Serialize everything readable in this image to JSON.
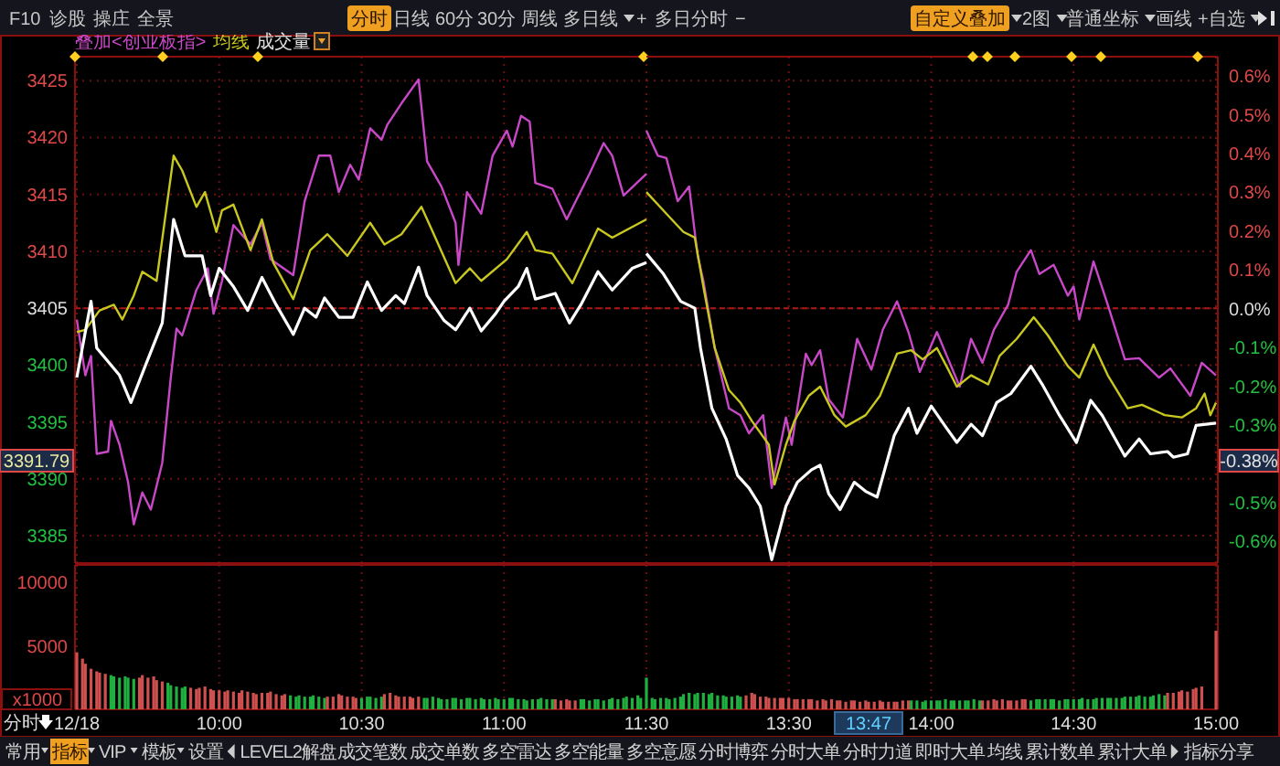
{
  "chart_data": [
    {
      "type": "line",
      "legend": "top left",
      "grid": true,
      "tick_labels": "y",
      "xlim": [
        9.5,
        11.5
      ],
      "xticks": [
        {
          "value": 9.5,
          "label": null
        },
        {
          "value": 10,
          "label": null
        },
        {
          "value": 10.5,
          "label": null
        },
        {
          "value": 11,
          "label": null
        },
        {
          "value": 11.5,
          "label": null
        }
      ],
      "ylim": [
        3382.6,
        3427.1
      ],
      "yticks": [
        3385,
        3390,
        3395,
        3400,
        3405,
        3410,
        3415,
        3420,
        3425
      ],
      "ref_lines": [
        {
          "axis": "y",
          "value": 3405,
          "color": "#b01818"
        }
      ],
      "annotations": [
        "3391.79"
      ],
      "series": [
        {
          "name": "叠加<创业板指>",
          "color": "#c848c8",
          "x": [
            9.5,
            9.53,
            9.55,
            9.57,
            9.61,
            9.62,
            9.65,
            9.68,
            9.7,
            9.73,
            9.76,
            9.8,
            9.83,
            9.85,
            9.87,
            9.89,
            9.92,
            9.96,
            9.98,
            10.01,
            10.05,
            10.11,
            10.15,
            10.18,
            10.26,
            10.3,
            10.35,
            10.39,
            10.42,
            10.46,
            10.49,
            10.53,
            10.57,
            10.59,
            10.64,
            10.7,
            10.73,
            10.78,
            10.83,
            10.84,
            10.87,
            10.92,
            10.96,
            11.01,
            11.03,
            11.06,
            11.09,
            11.11,
            11.17,
            11.22,
            11.3,
            11.35,
            11.38,
            11.42,
            11.5
          ],
          "values": [
            3404.0,
            3399.1,
            3400.8,
            3392.2,
            3392.4,
            3395.1,
            3393.0,
            3389.7,
            3386.0,
            3388.8,
            3387.3,
            3391.4,
            3398.9,
            3403.2,
            3402.6,
            3404.2,
            3406.6,
            3408.5,
            3404.5,
            3407.4,
            3412.3,
            3410.6,
            3412.5,
            3409.3,
            3407.9,
            3414.4,
            3418.4,
            3418.4,
            3415.2,
            3417.6,
            3416.3,
            3420.8,
            3419.8,
            3421.1,
            3423.0,
            3425.1,
            3417.9,
            3415.7,
            3412.5,
            3408.8,
            3415.2,
            3413.3,
            3418.4,
            3420.6,
            3419.2,
            3421.9,
            3421.4,
            3416.0,
            3415.5,
            3412.8,
            3416.8,
            3419.5,
            3418.4,
            3414.9,
            3416.8
          ]
        },
        {
          "name": "均线",
          "color": "#c8c820",
          "x": [
            9.5,
            9.53,
            9.58,
            9.63,
            9.66,
            9.7,
            9.73,
            9.78,
            9.84,
            9.87,
            9.92,
            9.95,
            9.99,
            10.01,
            10.05,
            10.11,
            10.15,
            10.19,
            10.26,
            10.32,
            10.38,
            10.45,
            10.53,
            10.58,
            10.64,
            10.71,
            10.75,
            10.83,
            10.88,
            10.92,
            11.01,
            11.08,
            11.11,
            11.17,
            11.24,
            11.33,
            11.38,
            11.5
          ],
          "values": [
            3402.9,
            3403.1,
            3404.8,
            3405.3,
            3404.0,
            3406.1,
            3408.2,
            3407.4,
            3418.4,
            3417.1,
            3413.9,
            3415.2,
            3411.7,
            3413.6,
            3414.1,
            3410.1,
            3412.8,
            3409.0,
            3405.8,
            3410.1,
            3411.5,
            3409.6,
            3412.5,
            3410.6,
            3411.5,
            3413.9,
            3411.7,
            3407.2,
            3408.5,
            3407.4,
            3409.3,
            3411.7,
            3410.1,
            3409.8,
            3407.2,
            3412.0,
            3411.2,
            3412.8
          ]
        },
        {
          "color": "#ffffff",
          "x": [
            9.5,
            9.55,
            9.57,
            9.65,
            9.69,
            9.74,
            9.8,
            9.84,
            9.88,
            9.94,
            9.97,
            10,
            10.05,
            10.1,
            10.15,
            10.2,
            10.26,
            10.3,
            10.34,
            10.37,
            10.42,
            10.47,
            10.52,
            10.57,
            10.62,
            10.65,
            10.7,
            10.73,
            10.79,
            10.83,
            10.88,
            10.92,
            10.97,
            11,
            11.05,
            11.08,
            11.11,
            11.18,
            11.23,
            11.27,
            11.33,
            11.38,
            11.45,
            11.5
          ],
          "values": [
            3398.9,
            3405.6,
            3401.5,
            3399.1,
            3396.7,
            3399.9,
            3403.7,
            3412.8,
            3409.6,
            3409.6,
            3406.1,
            3408.5,
            3406.9,
            3404.8,
            3407.7,
            3405.3,
            3402.7,
            3405.0,
            3404.2,
            3405.9,
            3404.2,
            3404.2,
            3407.3,
            3404.8,
            3406.1,
            3405.4,
            3408.6,
            3406.1,
            3403.9,
            3403.1,
            3405.0,
            3403.0,
            3404.5,
            3405.6,
            3406.9,
            3408.5,
            3405.8,
            3406.3,
            3403.7,
            3405.3,
            3408.2,
            3406.6,
            3408.5,
            3409.0
          ]
        }
      ]
    },
    {
      "type": "line",
      "grid": true,
      "tick_labels": false,
      "xlim": [
        13,
        15
      ],
      "xticks": [
        {
          "value": 13.5,
          "label": null
        },
        {
          "value": 14,
          "label": null
        },
        {
          "value": 14.5,
          "label": null
        },
        {
          "value": 15,
          "label": null
        }
      ],
      "ylim": [
        3382.6,
        3427.1
      ],
      "yticks": [
        3385,
        3390,
        3395,
        3400,
        3405,
        3410,
        3415,
        3420,
        3425
      ],
      "y2lim": [
        -0.656,
        0.65
      ],
      "y2ticks": [
        {
          "value": -0.6,
          "label": "-0.6%"
        },
        {
          "value": -0.5,
          "label": "-0.5%"
        },
        {
          "value": -0.3,
          "label": "-0.3%"
        },
        {
          "value": -0.2,
          "label": "-0.2%"
        },
        {
          "value": -0.1,
          "label": "-0.1%"
        },
        {
          "value": 0,
          "label": "0.0%"
        },
        {
          "value": 0.1,
          "label": "0.1%"
        },
        {
          "value": 0.2,
          "label": "0.2%"
        },
        {
          "value": 0.3,
          "label": "0.3%"
        },
        {
          "value": 0.4,
          "label": "0.4%"
        },
        {
          "value": 0.5,
          "label": "0.5%"
        },
        {
          "value": 0.6,
          "label": "0.6%"
        }
      ],
      "ref_lines": [
        {
          "axis": "y",
          "value": 3405,
          "color": "#b01818"
        }
      ],
      "annotations": [
        "-0.38%"
      ],
      "series": [
        {
          "color": "#c848c8",
          "x": [
            13,
            13.04,
            13.07,
            13.11,
            13.15,
            13.18,
            13.2,
            13.24,
            13.29,
            13.33,
            13.36,
            13.41,
            13.44,
            13.49,
            13.51,
            13.56,
            13.58,
            13.61,
            13.64,
            13.69,
            13.74,
            13.79,
            13.83,
            13.88,
            13.92,
            13.96,
            14.02,
            14.06,
            14.1,
            14.14,
            14.18,
            14.22,
            14.27,
            14.3,
            14.35,
            14.38,
            14.43,
            14.48,
            14.5,
            14.52,
            14.57,
            14.62,
            14.68,
            14.73,
            14.8,
            14.84,
            14.91,
            14.95,
            15
          ],
          "values": [
            3420.6,
            3418.4,
            3418.2,
            3414.4,
            3415.7,
            3409.6,
            3407.4,
            3401.5,
            3396.2,
            3395.6,
            3394.0,
            3395.6,
            3389.2,
            3395.4,
            3393.0,
            3401.0,
            3400.0,
            3401.3,
            3397.0,
            3395.4,
            3402.3,
            3399.6,
            3403.1,
            3405.6,
            3402.9,
            3399.4,
            3402.9,
            3400.5,
            3398.1,
            3402.3,
            3400.2,
            3403.1,
            3405.3,
            3408.2,
            3410.1,
            3408.0,
            3408.8,
            3406.1,
            3406.9,
            3404.0,
            3409.1,
            3405.3,
            3400.5,
            3400.6,
            3398.9,
            3399.7,
            3397.3,
            3400.2,
            3399.1
          ]
        },
        {
          "color": "#c8c820",
          "x": [
            13,
            13.07,
            13.13,
            13.17,
            13.2,
            13.24,
            13.29,
            13.33,
            13.37,
            13.43,
            13.45,
            13.49,
            13.52,
            13.57,
            13.61,
            13.66,
            13.7,
            13.77,
            13.82,
            13.88,
            13.93,
            13.97,
            14.02,
            14.06,
            14.09,
            14.14,
            14.2,
            14.24,
            14.3,
            14.36,
            14.41,
            14.48,
            14.52,
            14.57,
            14.62,
            14.69,
            14.74,
            14.82,
            14.88,
            14.93,
            14.96,
            14.98,
            15
          ],
          "values": [
            3415.2,
            3413.3,
            3411.7,
            3411.2,
            3406.9,
            3401.5,
            3397.8,
            3396.7,
            3395.1,
            3393.0,
            3389.5,
            3393.0,
            3395.1,
            3397.3,
            3398.1,
            3395.6,
            3394.6,
            3395.6,
            3397.3,
            3401.0,
            3401.3,
            3400.5,
            3401.5,
            3399.6,
            3398.1,
            3399.1,
            3398.3,
            3400.8,
            3402.3,
            3404.2,
            3402.6,
            3399.9,
            3398.9,
            3401.8,
            3399.1,
            3396.2,
            3396.5,
            3395.6,
            3395.4,
            3396.2,
            3397.5,
            3395.6,
            3396.7
          ]
        },
        {
          "color": "#ffffff",
          "x": [
            13,
            13.06,
            13.12,
            13.17,
            13.19,
            13.23,
            13.28,
            13.32,
            13.36,
            13.4,
            13.44,
            13.49,
            13.53,
            13.58,
            13.61,
            13.64,
            13.68,
            13.73,
            13.77,
            13.81,
            13.87,
            13.92,
            13.95,
            14,
            14.05,
            14.09,
            14.14,
            14.18,
            14.23,
            14.28,
            14.35,
            14.39,
            14.45,
            14.51,
            14.56,
            14.6,
            14.68,
            14.73,
            14.77,
            14.83,
            14.85,
            14.9,
            14.93,
            15
          ],
          "values": [
            3409.8,
            3408.0,
            3405.6,
            3405.0,
            3401.5,
            3396.2,
            3393.5,
            3390.3,
            3389.2,
            3387.6,
            3382.9,
            3387.6,
            3389.7,
            3390.8,
            3391.2,
            3388.7,
            3387.3,
            3389.7,
            3388.9,
            3388.4,
            3393.8,
            3396.2,
            3394.0,
            3396.4,
            3394.6,
            3393.2,
            3394.8,
            3393.8,
            3396.7,
            3397.5,
            3399.9,
            3398.3,
            3395.6,
            3393.2,
            3396.9,
            3395.6,
            3392.0,
            3393.5,
            3392.2,
            3392.4,
            3391.9,
            3392.2,
            3394.7,
            3394.9
          ]
        }
      ]
    },
    {
      "type": "bar",
      "ylabel": "x1000",
      "grid": "x",
      "xlim": [
        9.5,
        11.5
      ],
      "xticks": [
        {
          "value": 9.5,
          "label": "12/18"
        },
        {
          "value": 10,
          "label": "10:00"
        },
        {
          "value": 10.5,
          "label": "10:30"
        },
        {
          "value": 11,
          "label": "11:00"
        },
        {
          "value": 11.5,
          "label": "11:30"
        }
      ],
      "ylim": [
        0,
        11400
      ],
      "yticks": [
        5000,
        10000
      ],
      "x": [
        9.5,
        9.52,
        9.53,
        9.55,
        9.57,
        9.58,
        9.6,
        9.62,
        9.63,
        9.65,
        9.67,
        9.68,
        9.7,
        9.72,
        9.73,
        9.75,
        9.77,
        9.78,
        9.8,
        9.82,
        9.83,
        9.85,
        9.87,
        9.88,
        9.9,
        9.92,
        9.93,
        9.95,
        9.97,
        9.98,
        10,
        10.02,
        10.03,
        10.05,
        10.07,
        10.08,
        10.1,
        10.12,
        10.13,
        10.15,
        10.17,
        10.18,
        10.2,
        10.22,
        10.23,
        10.25,
        10.27,
        10.28,
        10.3,
        10.32,
        10.33,
        10.35,
        10.37,
        10.38,
        10.4,
        10.42,
        10.43,
        10.45,
        10.47,
        10.48,
        10.5,
        10.52,
        10.53,
        10.55,
        10.57,
        10.58,
        10.6,
        10.62,
        10.63,
        10.65,
        10.67,
        10.68,
        10.7,
        10.72,
        10.73,
        10.75,
        10.77,
        10.78,
        10.8,
        10.82,
        10.83,
        10.85,
        10.87,
        10.88,
        10.9,
        10.92,
        10.93,
        10.95,
        10.97,
        10.98,
        11,
        11.02,
        11.03,
        11.05,
        11.07,
        11.08,
        11.1,
        11.12,
        11.13,
        11.15,
        11.17,
        11.18,
        11.2,
        11.22,
        11.23,
        11.25,
        11.27,
        11.28,
        11.3,
        11.32,
        11.33,
        11.35,
        11.37,
        11.38,
        11.4,
        11.42,
        11.43,
        11.45,
        11.47,
        11.48,
        11.5
      ],
      "values": [
        4500,
        4000,
        3600,
        3200,
        3000,
        2900,
        2800,
        2700,
        2600,
        2500,
        2600,
        2500,
        2400,
        2500,
        2700,
        2500,
        2600,
        2300,
        2200,
        2100,
        1900,
        1800,
        1700,
        1800,
        1700,
        1600,
        1700,
        1800,
        1600,
        1500,
        1500,
        1400,
        1500,
        1400,
        1300,
        1500,
        1400,
        1300,
        1200,
        1300,
        1300,
        1400,
        1200,
        1100,
        1200,
        1100,
        1000,
        1100,
        1000,
        1000,
        1100,
        1000,
        900,
        1000,
        1000,
        1200,
        1100,
        1000,
        1000,
        900,
        900,
        1000,
        1000,
        900,
        1000,
        1200,
        1300,
        1100,
        1000,
        1000,
        1000,
        900,
        1000,
        900,
        900,
        1000,
        900,
        800,
        800,
        900,
        900,
        800,
        900,
        900,
        800,
        900,
        800,
        800,
        900,
        800,
        800,
        900,
        900,
        800,
        800,
        700,
        800,
        800,
        900,
        800,
        800,
        800,
        700,
        800,
        700,
        700,
        800,
        800,
        700,
        800,
        800,
        700,
        800,
        900,
        800,
        900,
        1000,
        900,
        1100,
        900,
        2500
      ],
      "colors": [
        "#d05050",
        "#d05050",
        "#d05050",
        "#d05050",
        "#d05050",
        "#d05050",
        "#d05050",
        "#20b040",
        "#20b040",
        "#20b040",
        "#20b040",
        "#20b040",
        "#20b040",
        "#d05050",
        "#d05050",
        "#d05050",
        "#d05050",
        "#d05050",
        "#d05050",
        "#20b040",
        "#20b040",
        "#20b040",
        "#20b040",
        "#20b040",
        "#d05050",
        "#d05050",
        "#d05050",
        "#d05050",
        "#d05050",
        "#d05050",
        "#d05050",
        "#d05050",
        "#d05050",
        "#d05050",
        "#d05050",
        "#d05050",
        "#d05050",
        "#d05050",
        "#d05050",
        "#d05050",
        "#d05050",
        "#d05050",
        "#d05050",
        "#d05050",
        "#d05050",
        "#20b040",
        "#20b040",
        "#20b040",
        "#20b040",
        "#20b040",
        "#20b040",
        "#20b040",
        "#20b040",
        "#d05050",
        "#d05050",
        "#d05050",
        "#d05050",
        "#d05050",
        "#d05050",
        "#d05050",
        "#20b040",
        "#20b040",
        "#20b040",
        "#20b040",
        "#20b040",
        "#d05050",
        "#d05050",
        "#d05050",
        "#d05050",
        "#d05050",
        "#d05050",
        "#d05050",
        "#d05050",
        "#20b040",
        "#20b040",
        "#20b040",
        "#20b040",
        "#20b040",
        "#20b040",
        "#20b040",
        "#20b040",
        "#20b040",
        "#20b040",
        "#20b040",
        "#20b040",
        "#20b040",
        "#20b040",
        "#20b040",
        "#20b040",
        "#20b040",
        "#20b040",
        "#20b040",
        "#20b040",
        "#20b040",
        "#20b040",
        "#20b040",
        "#20b040",
        "#20b040",
        "#20b040",
        "#20b040",
        "#20b040",
        "#d05050",
        "#d05050",
        "#d05050",
        "#d05050",
        "#d05050",
        "#20b040",
        "#20b040",
        "#20b040",
        "#20b040",
        "#20b040",
        "#20b040",
        "#20b040",
        "#20b040",
        "#20b040",
        "#20b040",
        "#20b040",
        "#20b040",
        "#20b040",
        "#20b040",
        "#20b040"
      ]
    },
    {
      "type": "bar",
      "grid": "x",
      "tick_labels": "x",
      "xlim": [
        13,
        15
      ],
      "xticks": [
        {
          "value": 13.5,
          "label": "13:30"
        },
        {
          "value": 14,
          "label": "14:00"
        },
        {
          "value": 14.5,
          "label": "14:30"
        },
        {
          "value": 15,
          "label": "15:00"
        }
      ],
      "ylim": [
        0,
        11400
      ],
      "annotations": [
        "13:47"
      ],
      "x": [
        13.02,
        13.03,
        13.05,
        13.07,
        13.08,
        13.1,
        13.12,
        13.13,
        13.15,
        13.17,
        13.18,
        13.2,
        13.22,
        13.23,
        13.25,
        13.27,
        13.28,
        13.3,
        13.32,
        13.33,
        13.35,
        13.37,
        13.38,
        13.4,
        13.42,
        13.43,
        13.45,
        13.47,
        13.48,
        13.5,
        13.52,
        13.53,
        13.55,
        13.57,
        13.58,
        13.6,
        13.62,
        13.63,
        13.65,
        13.67,
        13.68,
        13.7,
        13.72,
        13.73,
        13.75,
        13.77,
        13.78,
        13.8,
        13.82,
        13.83,
        13.85,
        13.87,
        13.88,
        13.9,
        13.92,
        13.93,
        13.95,
        13.97,
        13.98,
        14,
        14.02,
        14.03,
        14.05,
        14.07,
        14.08,
        14.1,
        14.12,
        14.13,
        14.15,
        14.17,
        14.18,
        14.2,
        14.22,
        14.23,
        14.25,
        14.27,
        14.28,
        14.3,
        14.32,
        14.33,
        14.35,
        14.37,
        14.38,
        14.4,
        14.42,
        14.43,
        14.45,
        14.47,
        14.48,
        14.5,
        14.52,
        14.53,
        14.55,
        14.57,
        14.58,
        14.6,
        14.62,
        14.63,
        14.65,
        14.67,
        14.68,
        14.7,
        14.72,
        14.73,
        14.75,
        14.77,
        14.78,
        14.8,
        14.82,
        14.83,
        14.85,
        14.87,
        14.88,
        14.9,
        14.92,
        14.93,
        14.95,
        15
      ],
      "values": [
        900,
        800,
        900,
        900,
        800,
        900,
        1000,
        1200,
        1300,
        1200,
        1300,
        1300,
        1200,
        1300,
        1100,
        1100,
        1000,
        1000,
        1100,
        1000,
        1100,
        1300,
        1200,
        1000,
        1000,
        900,
        900,
        900,
        900,
        900,
        800,
        800,
        800,
        800,
        800,
        700,
        800,
        700,
        800,
        700,
        700,
        600,
        700,
        700,
        600,
        700,
        600,
        600,
        700,
        600,
        600,
        600,
        600,
        700,
        700,
        700,
        700,
        600,
        700,
        700,
        700,
        700,
        800,
        700,
        700,
        700,
        700,
        700,
        800,
        700,
        700,
        700,
        800,
        700,
        800,
        700,
        700,
        700,
        800,
        800,
        700,
        800,
        800,
        800,
        800,
        800,
        700,
        800,
        800,
        800,
        800,
        900,
        800,
        800,
        900,
        900,
        900,
        900,
        900,
        900,
        1000,
        1000,
        1000,
        1100,
        1000,
        1000,
        1100,
        1200,
        1100,
        1300,
        1300,
        1400,
        1500,
        1400,
        1600,
        1700,
        1800,
        6200
      ],
      "colors": [
        "#20b040",
        "#20b040",
        "#20b040",
        "#20b040",
        "#20b040",
        "#20b040",
        "#20b040",
        "#20b040",
        "#20b040",
        "#20b040",
        "#20b040",
        "#20b040",
        "#20b040",
        "#20b040",
        "#20b040",
        "#20b040",
        "#20b040",
        "#20b040",
        "#20b040",
        "#20b040",
        "#d05050",
        "#d05050",
        "#d05050",
        "#d05050",
        "#d05050",
        "#d05050",
        "#d05050",
        "#d05050",
        "#d05050",
        "#d05050",
        "#d05050",
        "#d05050",
        "#d05050",
        "#d05050",
        "#d05050",
        "#d05050",
        "#d05050",
        "#d05050",
        "#d05050",
        "#d05050",
        "#d05050",
        "#d05050",
        "#d05050",
        "#d05050",
        "#d05050",
        "#d05050",
        "#d05050",
        "#d05050",
        "#d05050",
        "#d05050",
        "#d05050",
        "#d05050",
        "#d05050",
        "#d05050",
        "#d05050",
        "#20b040",
        "#20b040",
        "#20b040",
        "#20b040",
        "#20b040",
        "#20b040",
        "#20b040",
        "#20b040",
        "#20b040",
        "#20b040",
        "#20b040",
        "#20b040",
        "#20b040",
        "#20b040",
        "#20b040",
        "#d05050",
        "#d05050",
        "#d05050",
        "#d05050",
        "#d05050",
        "#d05050",
        "#d05050",
        "#d05050",
        "#d05050",
        "#d05050",
        "#20b040",
        "#20b040",
        "#20b040",
        "#20b040",
        "#20b040",
        "#20b040",
        "#20b040",
        "#20b040",
        "#20b040",
        "#20b040",
        "#20b040",
        "#20b040",
        "#20b040",
        "#20b040",
        "#20b040",
        "#20b040",
        "#20b040",
        "#20b040",
        "#20b040",
        "#20b040",
        "#20b040",
        "#20b040",
        "#20b040",
        "#20b040",
        "#20b040",
        "#20b040",
        "#20b040",
        "#20b040",
        "#20b040",
        "#d05050",
        "#d05050",
        "#d05050",
        "#d05050",
        "#d05050",
        "#d05050",
        "#d05050",
        "#d05050",
        "#d05050"
      ]
    },
    {
      "type": "other",
      "annotations": [
        "F10",
        "诊股",
        "操庄",
        "全景",
        "分时",
        "日线",
        "60分",
        "30分",
        "周线",
        "多日线",
        "+",
        "多日分时",
        "−",
        "自定义叠加",
        "2图",
        "普通坐标",
        "画线",
        "+自选",
        "成交量"
      ]
    },
    {
      "type": "other",
      "annotations": [
        "分时",
        "常用",
        "指标",
        "VIP",
        "模板",
        "设置",
        "LEVEL2解盘",
        "成交笔数",
        "成交单数",
        "多空雷达",
        "多空能量",
        "多空意愿",
        "分时博弈",
        "分时大单",
        "分时力道",
        "即时大单",
        "均线",
        "累计数单",
        "累计大单",
        "指标分享"
      ]
    }
  ]
}
